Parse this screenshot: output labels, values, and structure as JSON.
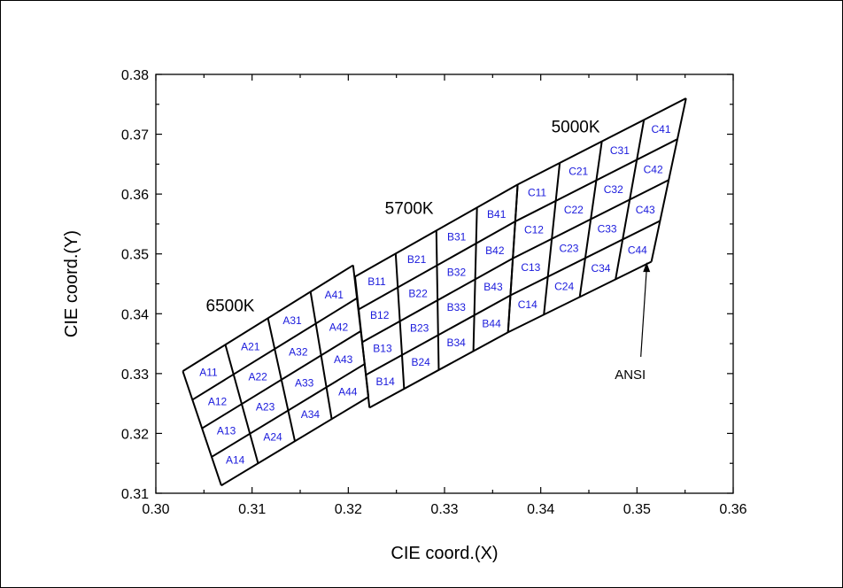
{
  "chart_data": {
    "type": "diagram",
    "xlabel": "CIE coord.(X)",
    "ylabel": "CIE coord.(Y)",
    "xlim": [
      0.3,
      0.36
    ],
    "ylim": [
      0.31,
      0.38
    ],
    "xticks": [
      "0.30",
      "0.31",
      "0.32",
      "0.33",
      "0.34",
      "0.35",
      "0.36"
    ],
    "yticks": [
      "0.31",
      "0.32",
      "0.33",
      "0.34",
      "0.35",
      "0.36",
      "0.37",
      "0.38"
    ],
    "grid": false,
    "groups": [
      {
        "name": "6500K",
        "prefix": "A",
        "corners": {
          "top_left": [
            0.3028,
            0.3304
          ],
          "top_right": [
            0.3205,
            0.3481
          ],
          "bottom_left": [
            0.3068,
            0.3113
          ],
          "bottom_right": [
            0.3221,
            0.3261
          ]
        },
        "label_pos": [
          0.3052,
          0.3404
        ]
      },
      {
        "name": "5700K",
        "prefix": "B",
        "corners": {
          "top_left": [
            0.3207,
            0.3462
          ],
          "top_right": [
            0.3376,
            0.3616
          ],
          "bottom_left": [
            0.3222,
            0.3243
          ],
          "bottom_right": [
            0.3366,
            0.3369
          ]
        },
        "label_pos": [
          0.3238,
          0.3567
        ]
      },
      {
        "name": "5000K",
        "prefix": "C",
        "corners": {
          "top_left": [
            0.3376,
            0.3616
          ],
          "top_right": [
            0.3551,
            0.376
          ],
          "bottom_left": [
            0.3366,
            0.3369
          ],
          "bottom_right": [
            0.3515,
            0.3487
          ]
        },
        "label_pos": [
          0.3411,
          0.3703
        ]
      }
    ],
    "cell_labels": {
      "A": [
        [
          "A11",
          "A21",
          "A31",
          "A41"
        ],
        [
          "A12",
          "A22",
          "A32",
          "A42"
        ],
        [
          "A13",
          "A23",
          "A33",
          "A43"
        ],
        [
          "A14",
          "A24",
          "A34",
          "A44"
        ]
      ],
      "B": [
        [
          "B11",
          "B21",
          "B31",
          "B41"
        ],
        [
          "B12",
          "B22",
          "B32",
          "B42"
        ],
        [
          "B13",
          "B23",
          "B33",
          "B43"
        ],
        [
          "B14",
          "B24",
          "B34",
          "B44"
        ]
      ],
      "C": [
        [
          "C11",
          "C21",
          "C31",
          "C41"
        ],
        [
          "C12",
          "C22",
          "C32",
          "C42"
        ],
        [
          "C13",
          "C23",
          "C33",
          "C43"
        ],
        [
          "C14",
          "C24",
          "C34",
          "C44"
        ]
      ]
    },
    "annotations": [
      {
        "text": "ANSI",
        "text_pos": [
          0.3493,
          0.3298
        ],
        "arrow_from": [
          0.3504,
          0.3328
        ],
        "arrow_to": [
          0.351,
          0.3486
        ]
      }
    ]
  }
}
